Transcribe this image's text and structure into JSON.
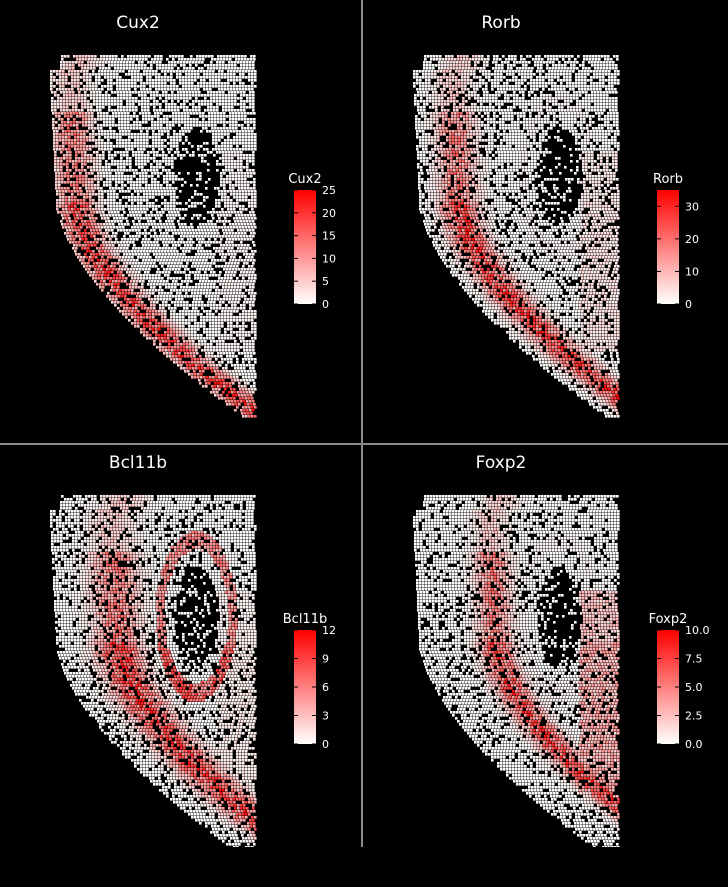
{
  "chart_data": [
    {
      "type": "heatmap",
      "title": "Cux2",
      "legend": {
        "title": "Cux2",
        "ticks": [
          0,
          5,
          10,
          15,
          20,
          25
        ],
        "tick_labels": [
          "0",
          "5",
          "10",
          "15",
          "20",
          "25"
        ],
        "min": 0,
        "max": 25,
        "position": "right"
      },
      "colormap": {
        "low": "#ffffff",
        "high": "#ff0000"
      },
      "expression_pattern": "upper cortical layers, strongest along the outer band near the pial surface"
    },
    {
      "type": "heatmap",
      "title": "Rorb",
      "legend": {
        "title": "Rorb",
        "ticks": [
          0,
          10,
          20,
          30
        ],
        "tick_labels": [
          "0",
          "10",
          "20",
          "30"
        ],
        "min": 0,
        "max": 35,
        "position": "right"
      },
      "colormap": {
        "low": "#ffffff",
        "high": "#ff0000"
      },
      "expression_pattern": "middle cortical layer band, moderate and diffuse"
    },
    {
      "type": "heatmap",
      "title": "Bcl11b",
      "legend": {
        "title": "Bcl11b",
        "ticks": [
          0,
          3,
          6,
          9,
          12
        ],
        "tick_labels": [
          "0",
          "3",
          "6",
          "9",
          "12"
        ],
        "min": 0,
        "max": 12,
        "position": "right"
      },
      "colormap": {
        "low": "#ffffff",
        "high": "#ff0000"
      },
      "expression_pattern": "deep cortical layers and hippocampal arc, strongest in the hippocampus"
    },
    {
      "type": "heatmap",
      "title": "Foxp2",
      "legend": {
        "title": "Foxp2",
        "ticks": [
          0,
          2.5,
          5,
          7.5,
          10
        ],
        "tick_labels": [
          "0.0",
          "2.5",
          "5.0",
          "7.5",
          "10.0"
        ],
        "min": 0,
        "max": 10,
        "position": "right"
      },
      "colormap": {
        "low": "#ffffff",
        "high": "#ff0000"
      },
      "expression_pattern": "deepest cortical layer and thalamic region at right"
    }
  ],
  "colors": {
    "background": "#000000",
    "divider": "#8a8a8a",
    "text": "#ffffff",
    "low": "#ffffff",
    "high": "#ff0000"
  }
}
